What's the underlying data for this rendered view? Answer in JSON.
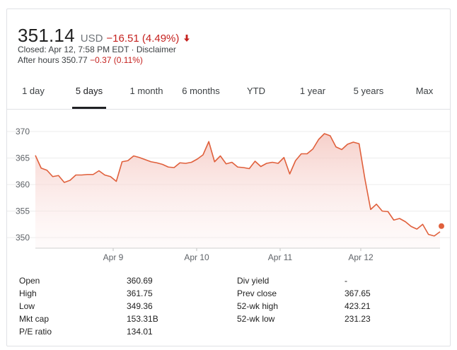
{
  "quote": {
    "price": "351.14",
    "currency": "USD",
    "change": "−16.51 (4.49%)",
    "closed_text": "Closed: Apr 12, 7:58 PM EDT · Disclaimer",
    "after_hours_label": "After hours 350.77",
    "after_hours_change": "−0.37 (0.11%)",
    "colors": {
      "negative": "#c5221f",
      "line": "#e0603c"
    }
  },
  "tabs": [
    {
      "label": "1 day",
      "active": false
    },
    {
      "label": "5 days",
      "active": true
    },
    {
      "label": "1 month",
      "active": false
    },
    {
      "label": "6 months",
      "active": false
    },
    {
      "label": "YTD",
      "active": false
    },
    {
      "label": "1 year",
      "active": false
    },
    {
      "label": "5 years",
      "active": false
    },
    {
      "label": "Max",
      "active": false
    }
  ],
  "chart_data": {
    "type": "area",
    "y_ticks": [
      "370",
      "365",
      "360",
      "355",
      "350"
    ],
    "x_ticks": [
      "Apr 9",
      "Apr 10",
      "Apr 11",
      "Apr 12"
    ],
    "ylim": [
      348,
      372
    ],
    "grid": true,
    "series": [
      {
        "values": [
          365.5,
          363.1,
          362.7,
          361.5,
          361.7,
          360.4,
          360.8,
          361.8,
          361.8,
          361.9,
          361.9,
          362.6,
          361.8,
          361.5,
          360.6,
          364.3,
          364.5,
          365.4,
          365.1,
          364.7,
          364.3,
          364.1,
          363.8,
          363.3,
          363.2,
          364.1,
          364.0,
          364.2,
          364.8,
          365.6,
          368.1,
          364.3,
          365.4,
          363.9,
          364.2,
          363.3,
          363.2,
          363.0,
          364.4,
          363.4,
          364.0,
          364.2,
          364.0,
          365.1,
          362.0,
          364.5,
          365.8,
          365.8,
          366.7,
          368.5,
          369.6,
          369.2,
          367.1,
          366.6,
          367.6,
          368.0,
          367.7,
          361.1,
          355.3,
          356.3,
          355.0,
          354.9,
          353.3,
          353.6,
          353.0,
          352.1,
          351.6,
          352.5,
          350.6,
          350.3,
          351.1
        ]
      }
    ]
  },
  "stats": {
    "left": [
      {
        "key": "Open",
        "value": "360.69"
      },
      {
        "key": "High",
        "value": "361.75"
      },
      {
        "key": "Low",
        "value": "349.36"
      },
      {
        "key": "Mkt cap",
        "value": "153.31B"
      },
      {
        "key": "P/E ratio",
        "value": "134.01"
      }
    ],
    "right": [
      {
        "key": "Div yield",
        "value": "-"
      },
      {
        "key": "Prev close",
        "value": "367.65"
      },
      {
        "key": "52-wk high",
        "value": "423.21"
      },
      {
        "key": "52-wk low",
        "value": "231.23"
      }
    ]
  }
}
